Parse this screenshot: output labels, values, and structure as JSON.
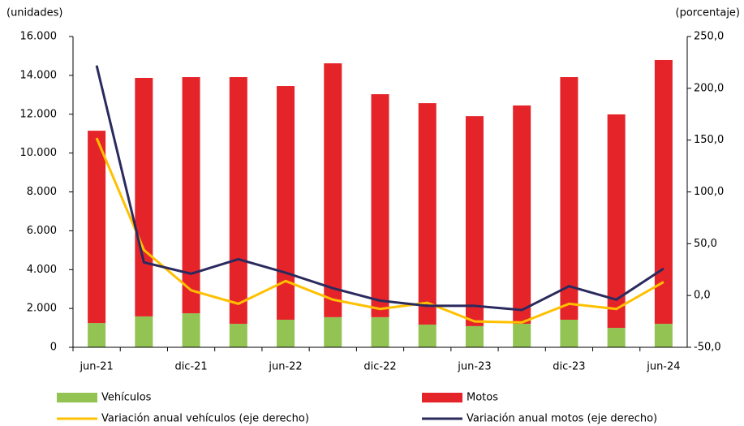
{
  "chart_data": {
    "type": "bar",
    "y_label": "(unidades)",
    "y2_label": "(porcentaje)",
    "categories": [
      "jun-21",
      null,
      "dic-21",
      null,
      "jun-22",
      null,
      "dic-22",
      null,
      "jun-23",
      null,
      "dic-23",
      null,
      "jun-24"
    ],
    "series": [
      {
        "name": "Vehículos",
        "color": "#92c353",
        "type": "bar",
        "values": [
          1250,
          1590,
          1750,
          1210,
          1420,
          1550,
          1550,
          1170,
          1090,
          1210,
          1420,
          1000,
          1210
        ]
      },
      {
        "name": "Motos",
        "color": "#e5242a",
        "type": "bar",
        "values": [
          9900,
          12280,
          12160,
          12700,
          12030,
          13070,
          11480,
          11400,
          10810,
          11240,
          12490,
          10990,
          13580
        ]
      },
      {
        "name": "Variación anual vehículos (eje derecho)",
        "color": "#ffc000",
        "type": "line",
        "axis": "y2",
        "values": [
          152,
          44,
          5,
          -8,
          14,
          -4,
          -13,
          -7,
          -25,
          -26,
          -8,
          -13,
          13
        ]
      },
      {
        "name": "Variación anual motos (eje derecho)",
        "color": "#2b2a5e",
        "type": "line",
        "axis": "y2",
        "values": [
          222,
          32,
          21,
          35,
          22,
          7,
          -5,
          -10,
          -10,
          -14,
          9,
          -4,
          26
        ]
      }
    ],
    "ylim": [
      0,
      16000
    ],
    "yticks": [
      0,
      {
        "value": 2000,
        "label": "2.000"
      },
      {
        "value": 4000,
        "label": "4.000"
      },
      {
        "value": 6000,
        "label": "6.000"
      },
      {
        "value": 8000,
        "label": "8.000"
      },
      {
        "value": 10000,
        "label": "10.000"
      },
      {
        "value": 12000,
        "label": "12.000"
      },
      {
        "value": 14000,
        "label": "14.000"
      },
      {
        "value": 16000,
        "label": "16.000"
      }
    ],
    "y2lim": [
      -50,
      250
    ],
    "y2ticks": [
      {
        "value": -50,
        "label": "-50,0"
      },
      {
        "value": 0,
        "label": "0,0"
      },
      {
        "value": 50,
        "label": "50,0"
      },
      {
        "value": 100,
        "label": "100,0"
      },
      {
        "value": 150,
        "label": "150,0"
      },
      {
        "value": 200,
        "label": "200,0"
      },
      {
        "value": 250,
        "label": "250,0"
      }
    ],
    "legend": "bottom"
  }
}
